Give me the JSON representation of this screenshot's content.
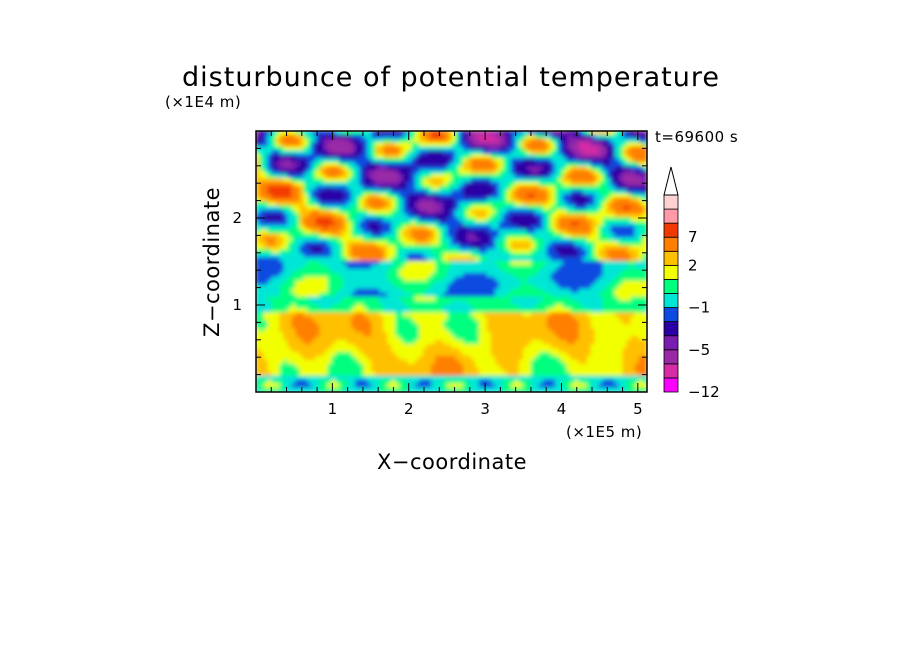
{
  "chart_data": {
    "type": "heatmap",
    "title": "disturbunce of potential temperature",
    "time_label": "t=69600 s",
    "xlabel": "X−coordinate",
    "ylabel": "Z−coordinate",
    "x_unit": "(×1E5 m)",
    "y_unit": "(×1E4 m)",
    "xlim": [
      0,
      5.12
    ],
    "ylim": [
      0,
      3.0
    ],
    "x_ticks": [
      {
        "value": 1,
        "label": "1"
      },
      {
        "value": 2,
        "label": "2"
      },
      {
        "value": 3,
        "label": "3"
      },
      {
        "value": 4,
        "label": "4"
      },
      {
        "value": 5,
        "label": "5"
      }
    ],
    "y_ticks": [
      {
        "value": 1,
        "label": "1"
      },
      {
        "value": 2,
        "label": "2"
      }
    ],
    "colorbar": {
      "levels_shown": [
        {
          "value": 7,
          "label": "7"
        },
        {
          "value": 2,
          "label": "2"
        },
        {
          "value": -1,
          "label": "−1"
        },
        {
          "value": -5,
          "label": "−5"
        },
        {
          "value": -12,
          "label": "−12"
        }
      ],
      "colors": [
        "#ff00ff",
        "#d62ca6",
        "#9a29a6",
        "#7a1cb0",
        "#2a00a6",
        "#0d4be0",
        "#00e6d6",
        "#00ff7f",
        "#f2ff00",
        "#ffc000",
        "#ff7f00",
        "#f23a00",
        "#ff9aa6",
        "#ffd2d2"
      ],
      "extend": "max-arrow"
    }
  }
}
